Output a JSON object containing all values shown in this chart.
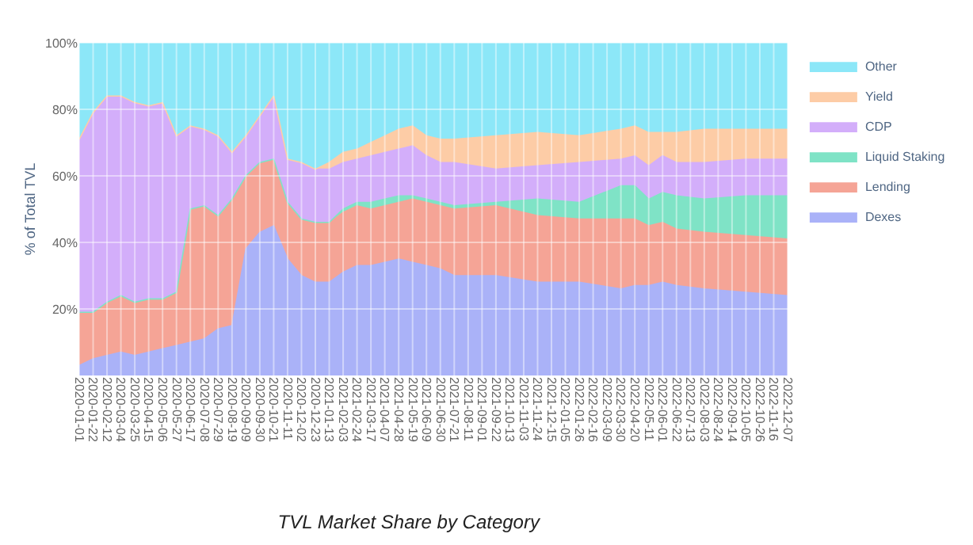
{
  "chart_data": {
    "type": "area",
    "stacked": true,
    "title": "TVL Market Share by Category",
    "ylabel": "% of Total TVL",
    "x": [
      "2020-01-01",
      "2020-01-22",
      "2020-02-12",
      "2020-03-04",
      "2020-03-25",
      "2020-04-15",
      "2020-05-06",
      "2020-05-27",
      "2020-06-17",
      "2020-07-08",
      "2020-07-29",
      "2020-08-19",
      "2020-09-09",
      "2020-09-30",
      "2020-10-21",
      "2020-11-11",
      "2020-12-02",
      "2020-12-23",
      "2021-01-13",
      "2021-02-03",
      "2021-02-24",
      "2021-03-17",
      "2021-04-07",
      "2021-04-28",
      "2021-05-19",
      "2021-06-09",
      "2021-06-30",
      "2021-07-21",
      "2021-09-22",
      "2021-11-24",
      "2022-01-26",
      "2022-03-30",
      "2022-04-20",
      "2022-05-11",
      "2022-06-01",
      "2022-06-22",
      "2022-08-03",
      "2022-10-05",
      "2022-12-07"
    ],
    "series": [
      {
        "name": "Dexes",
        "color": "#aab2f8",
        "values": [
          3,
          5,
          6,
          7,
          6,
          7,
          8,
          9,
          10,
          11,
          14,
          15,
          38,
          43,
          45,
          35,
          30,
          28,
          28,
          31,
          33,
          33,
          34,
          35,
          34,
          33,
          32,
          30,
          30,
          28,
          28,
          26,
          27,
          27,
          28,
          27,
          26,
          25,
          24
        ]
      },
      {
        "name": "Lending",
        "color": "#f5a496",
        "values": [
          16,
          14,
          16,
          17,
          16,
          16,
          15,
          16,
          40,
          40,
          34,
          38,
          22,
          21,
          20,
          17,
          17,
          18,
          18,
          18,
          18,
          17,
          17,
          17,
          19,
          19,
          19,
          20,
          21,
          20,
          19,
          21,
          20,
          18,
          18,
          17,
          17,
          17,
          17
        ]
      },
      {
        "name": "Liquid Staking",
        "color": "#7fe3c6",
        "values": [
          0,
          0,
          0,
          0,
          0,
          0,
          0,
          0,
          0,
          0,
          0,
          0,
          0,
          0,
          0,
          0,
          0,
          0,
          0,
          1,
          1,
          2,
          2,
          2,
          1,
          1,
          1,
          1,
          1,
          5,
          5,
          10,
          10,
          8,
          9,
          10,
          10,
          12,
          13
        ]
      },
      {
        "name": "CDP",
        "color": "#d3aefa",
        "values": [
          52,
          60,
          62,
          60,
          60,
          58,
          59,
          47,
          25,
          23,
          24,
          14,
          12,
          14,
          19,
          13,
          17,
          16,
          16,
          14,
          13,
          14,
          14,
          14,
          15,
          13,
          12,
          13,
          10,
          10,
          12,
          8,
          9,
          10,
          11,
          10,
          11,
          11,
          11
        ]
      },
      {
        "name": "Yield",
        "color": "#fdcca6",
        "values": [
          0,
          0,
          0,
          0,
          0,
          0,
          0,
          0,
          0,
          0,
          0,
          0,
          0,
          0,
          0,
          0,
          0,
          0,
          2,
          3,
          3,
          4,
          5,
          6,
          6,
          6,
          7,
          7,
          10,
          10,
          8,
          9,
          9,
          10,
          7,
          9,
          10,
          9,
          9
        ]
      },
      {
        "name": "Other",
        "color": "#8ce7f8",
        "values": [
          29,
          21,
          16,
          16,
          18,
          19,
          18,
          28,
          25,
          26,
          28,
          33,
          28,
          22,
          16,
          35,
          36,
          38,
          36,
          33,
          32,
          30,
          28,
          26,
          25,
          28,
          29,
          29,
          28,
          27,
          28,
          26,
          25,
          27,
          27,
          27,
          26,
          26,
          26
        ]
      }
    ],
    "xlim": [
      "2020-01-01",
      "2022-12-07"
    ],
    "xticks": [
      "2020-01-01",
      "2020-01-22",
      "2020-02-12",
      "2020-03-04",
      "2020-03-25",
      "2020-04-15",
      "2020-05-06",
      "2020-05-27",
      "2020-06-17",
      "2020-07-08",
      "2020-07-29",
      "2020-08-19",
      "2020-09-09",
      "2020-09-30",
      "2020-10-21",
      "2020-11-11",
      "2020-12-02",
      "2020-12-23",
      "2021-01-13",
      "2021-02-03",
      "2021-02-24",
      "2021-03-17",
      "2021-04-07",
      "2021-04-28",
      "2021-05-19",
      "2021-06-09",
      "2021-06-30",
      "2021-07-21",
      "2021-08-11",
      "2021-09-01",
      "2021-09-22",
      "2021-10-13",
      "2021-11-03",
      "2021-11-24",
      "2021-12-15",
      "2022-01-05",
      "2022-01-26",
      "2022-02-16",
      "2022-03-09",
      "2022-03-30",
      "2022-04-20",
      "2022-05-11",
      "2022-06-01",
      "2022-06-22",
      "2022-07-13",
      "2022-08-03",
      "2022-08-24",
      "2022-09-14",
      "2022-10-05",
      "2022-10-26",
      "2022-11-16",
      "2022-12-07"
    ],
    "ylim": [
      0,
      100
    ],
    "yticks": [
      {
        "value": 20,
        "label": "20%"
      },
      {
        "value": 40,
        "label": "40%"
      },
      {
        "value": 60,
        "label": "60%"
      },
      {
        "value": 80,
        "label": "80%"
      },
      {
        "value": 100,
        "label": "100%"
      }
    ],
    "grid": true,
    "legend": "top right",
    "marker": "none"
  }
}
